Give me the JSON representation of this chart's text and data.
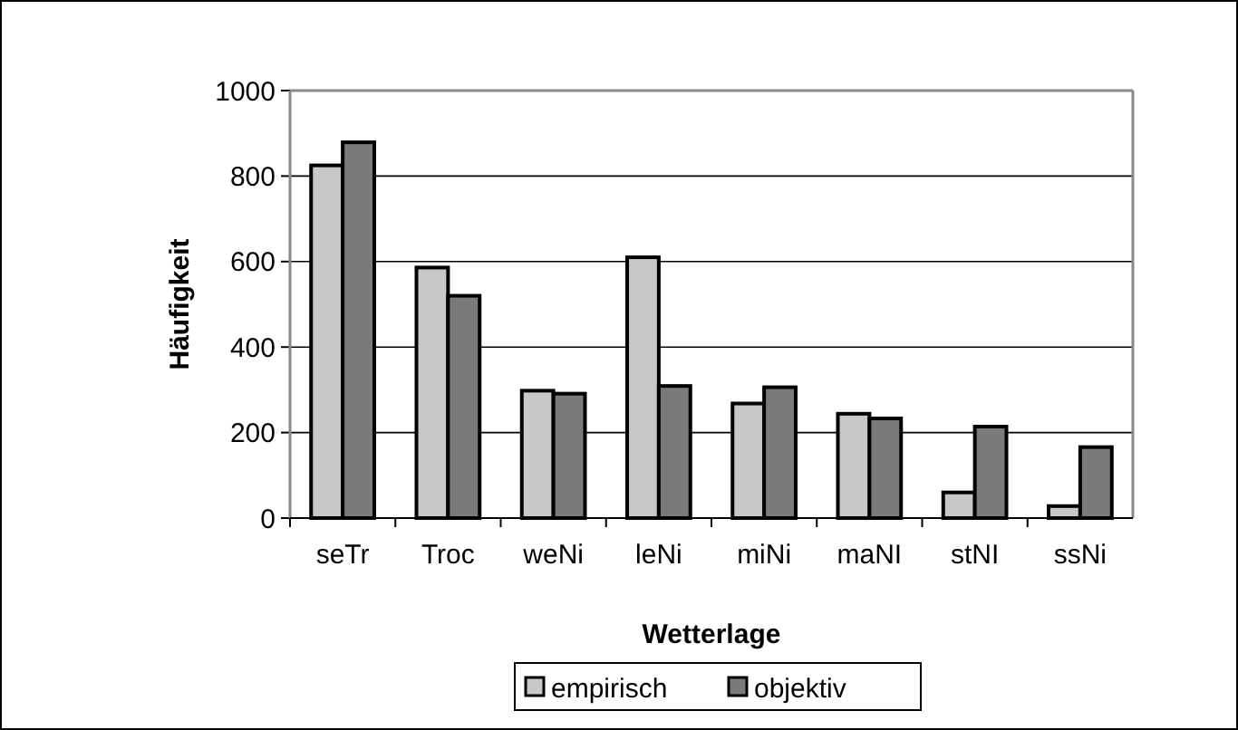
{
  "chart_data": {
    "type": "bar",
    "xlabel": "Wetterlage",
    "ylabel": "Häufigkeit",
    "categories": [
      "seTr",
      "Troc",
      "weNi",
      "leNi",
      "miNi",
      "maNI",
      "stNI",
      "ssNi"
    ],
    "series": [
      {
        "name": "empirisch",
        "color": "#c8c8c8",
        "values": [
          825,
          586,
          298,
          610,
          268,
          244,
          60,
          28
        ]
      },
      {
        "name": "objektiv",
        "color": "#7a7a7a",
        "values": [
          879,
          520,
          291,
          309,
          306,
          233,
          214,
          166
        ]
      }
    ],
    "ylim": [
      0,
      1000
    ],
    "yticks": [
      0,
      200,
      400,
      600,
      800,
      1000
    ],
    "grid": "y",
    "legend": "bottom"
  }
}
